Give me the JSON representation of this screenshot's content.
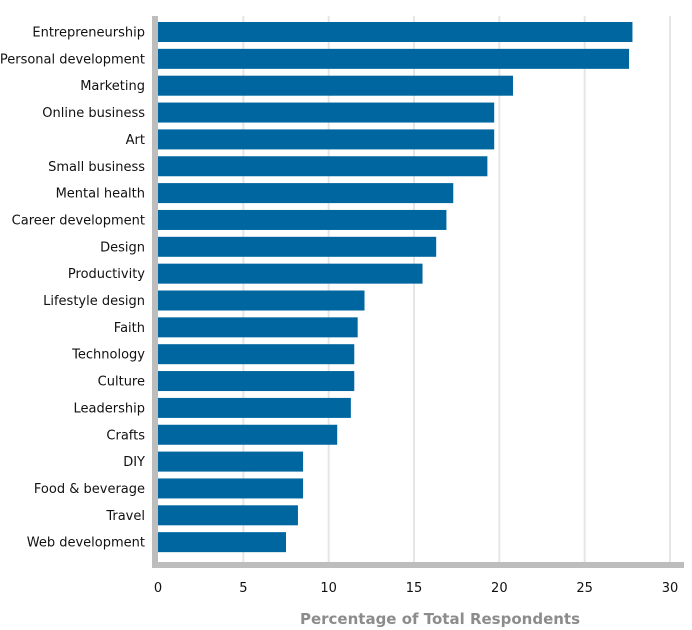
{
  "chart_data": {
    "type": "bar",
    "orientation": "horizontal",
    "title": "",
    "xlabel": "Percentage of Total Respondents",
    "ylabel": "",
    "xlim": [
      0,
      30
    ],
    "xticks": [
      0,
      5,
      10,
      15,
      20,
      25,
      30
    ],
    "grid": true,
    "categories": [
      "Entrepreneurship",
      "Personal development",
      "Marketing",
      "Online business",
      "Art",
      "Small business",
      "Mental health",
      "Career development",
      "Design",
      "Productivity",
      "Lifestyle design",
      "Faith",
      "Technology",
      "Culture",
      "Leadership",
      "Crafts",
      "DIY",
      "Food & beverage",
      "Travel",
      "Web development"
    ],
    "values": [
      27.8,
      27.6,
      20.8,
      19.7,
      19.7,
      19.3,
      17.3,
      16.9,
      16.3,
      15.5,
      12.1,
      11.7,
      11.5,
      11.5,
      11.3,
      10.5,
      8.5,
      8.5,
      8.2,
      7.5
    ],
    "colors": {
      "bar": "#0066A0",
      "axis": "#BDBDBD",
      "grid": "#E6E6E6",
      "title": "#8C8C8C"
    }
  }
}
